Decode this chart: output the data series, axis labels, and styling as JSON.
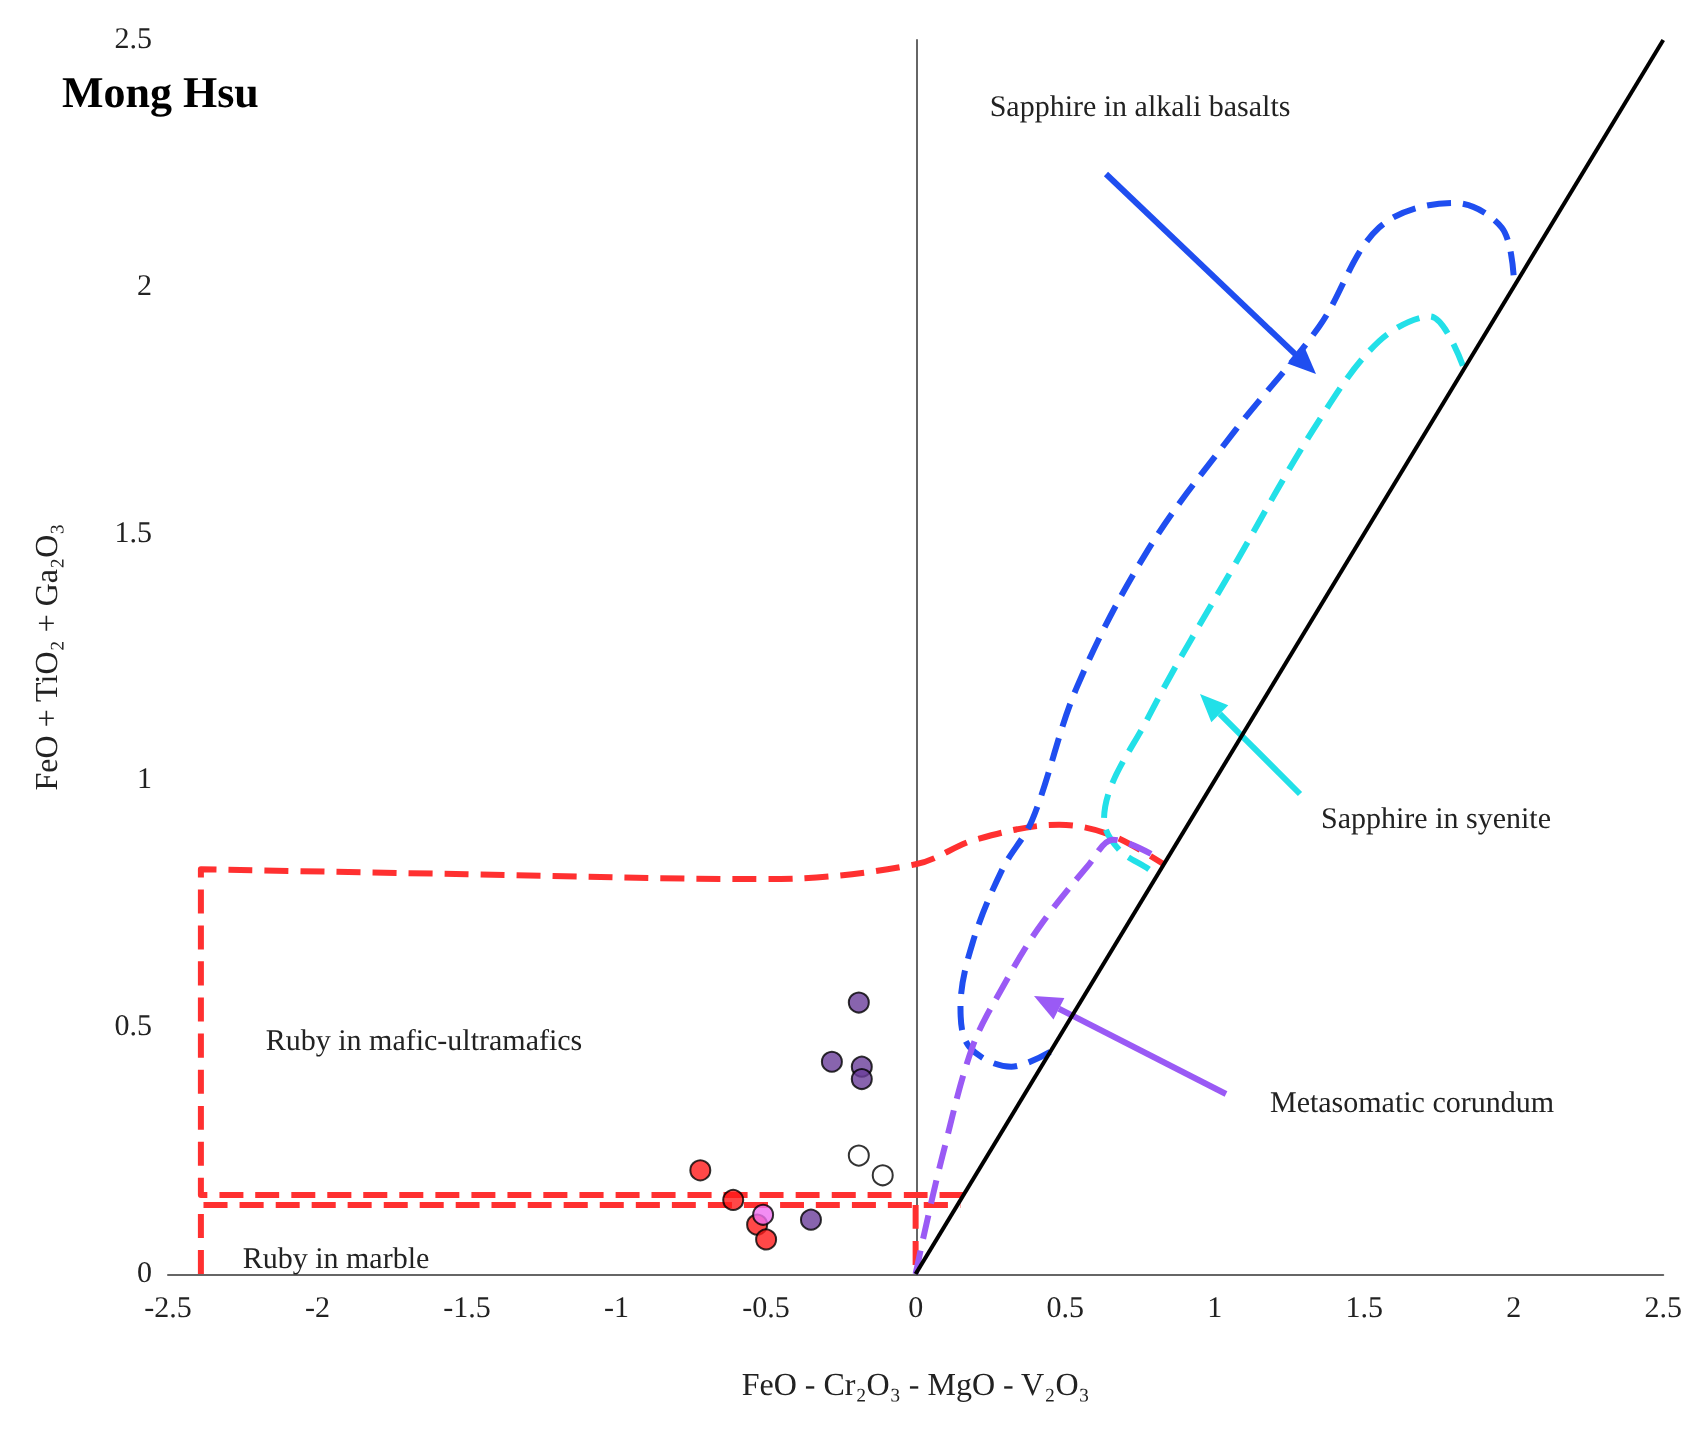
{
  "chart_data": {
    "type": "scatter",
    "title": "Mong Hsu",
    "xlabel": "FeO - Cr₂O₃ - MgO - V₂O₃",
    "ylabel": "FeO + TiO₂ + Ga₂O₃",
    "xlim": [
      -2.5,
      2.5
    ],
    "xticks": [
      -2.5,
      -2,
      -1.5,
      -1,
      -0.5,
      0,
      0.5,
      1,
      1.5,
      2,
      2.5
    ],
    "ylim": [
      0,
      2.5
    ],
    "yticks": [
      0,
      0.5,
      1,
      1.5,
      2,
      2.5
    ],
    "marker": "circle",
    "series": [
      {
        "color": "#ff1a1a",
        "x": [
          -0.72,
          -0.61,
          -0.53,
          -0.5
        ],
        "values": [
          0.21,
          0.15,
          0.1,
          0.07
        ]
      },
      {
        "color": "#6a3d9a",
        "x": [
          -0.19,
          -0.28,
          -0.18,
          -0.18,
          -0.35
        ],
        "values": [
          0.55,
          0.43,
          0.42,
          0.395,
          0.11
        ]
      },
      {
        "color": "#f070f0",
        "x": [
          -0.51
        ],
        "values": [
          0.12
        ]
      },
      {
        "color": "#ffffff",
        "x": [
          -0.19,
          -0.11
        ],
        "values": [
          0.24,
          0.2
        ]
      },
      {
        "type": "line",
        "marker": "none",
        "line_style": "dashed",
        "color": "#ff3030",
        "x": [
          0.16,
          -2.39,
          -2.39,
          -1.5,
          -0.5,
          0,
          0.2,
          0.48,
          0.65,
          0.83
        ],
        "values": [
          0.16,
          0.16,
          0.82,
          0.81,
          0.8,
          0.83,
          0.88,
          0.91,
          0.89,
          0.83
        ]
      },
      {
        "type": "line",
        "marker": "none",
        "line_style": "dashed",
        "color": "#ff3030",
        "x": [
          -2.39,
          -2.39,
          0,
          0.15,
          null,
          0,
          0
        ],
        "values": [
          0,
          0.14,
          0.14,
          0.14,
          null,
          0.14,
          0
        ]
      },
      {
        "type": "line",
        "marker": "none",
        "line_style": "dashed",
        "color": "#1f4ef0",
        "x": [
          0.45,
          0.32,
          0.18,
          0.15,
          0.19,
          0.29,
          0.39,
          0.54,
          0.78,
          1.07,
          1.35,
          1.55,
          1.8,
          1.96,
          2.0
        ],
        "values": [
          0.45,
          0.42,
          0.46,
          0.54,
          0.67,
          0.82,
          0.92,
          1.19,
          1.47,
          1.71,
          1.92,
          2.12,
          2.17,
          2.12,
          2.02
        ]
      },
      {
        "type": "line",
        "marker": "none",
        "line_style": "dashed",
        "color": "#22e0e8",
        "x": [
          1.83,
          1.72,
          1.55,
          1.35,
          1.07,
          0.78,
          0.63,
          0.68,
          0.78,
          0.8
        ],
        "values": [
          1.84,
          1.94,
          1.89,
          1.73,
          1.44,
          1.13,
          0.92,
          0.86,
          0.82,
          0.81
        ]
      },
      {
        "type": "line",
        "marker": "none",
        "line_style": "dashed",
        "color": "#9a5af5",
        "x": [
          0,
          0.03,
          0.09,
          0.19,
          0.29,
          0.41,
          0.58,
          0.66,
          0.82
        ],
        "values": [
          0,
          0.085,
          0.24,
          0.46,
          0.58,
          0.7,
          0.83,
          0.88,
          0.84
        ]
      },
      {
        "type": "line",
        "marker": "none",
        "line_style": "solid",
        "color": "#000000",
        "x": [
          0,
          2.5
        ],
        "values": [
          0,
          2.5
        ]
      }
    ],
    "annotations": [
      "Sapphire in alkali basalts",
      "Sapphire in syenite",
      "Metasomatic corundum",
      "Ruby in mafic-ultramafics",
      "Ruby in marble"
    ]
  }
}
